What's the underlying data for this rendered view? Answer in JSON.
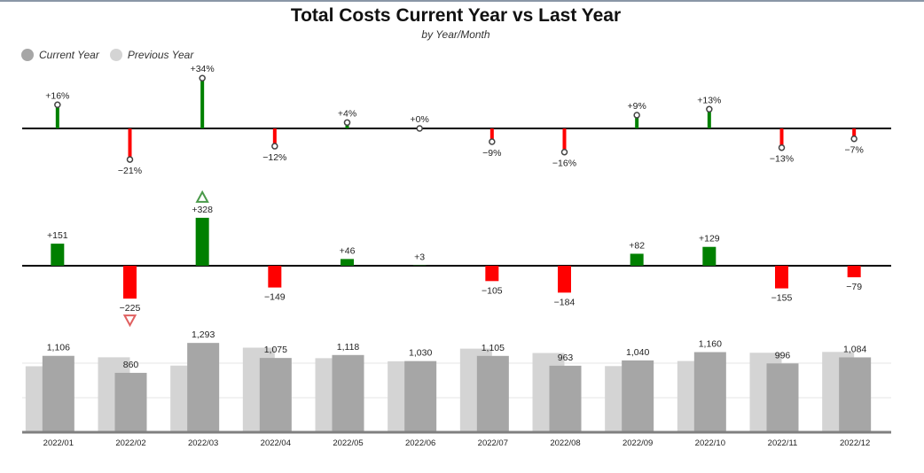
{
  "chart_data": {
    "type": "bar",
    "title": "Total Costs Current Year vs Last Year",
    "subtitle": "by Year/Month",
    "categories": [
      "2022/01",
      "2022/02",
      "2022/03",
      "2022/04",
      "2022/05",
      "2022/06",
      "2022/07",
      "2022/08",
      "2022/09",
      "2022/10",
      "2022/11",
      "2022/12"
    ],
    "legend": {
      "placement": "top-left"
    },
    "series": [
      {
        "name": "Current Year",
        "values": [
          1106,
          860,
          1293,
          1075,
          1118,
          1030,
          1105,
          963,
          1040,
          1160,
          996,
          1084
        ]
      },
      {
        "name": "Previous Year",
        "values": [
          955,
          1085,
          965,
          1224,
          1072,
          1027,
          1210,
          1147,
          958,
          1031,
          1151,
          1163
        ]
      }
    ],
    "variance_abs": [
      151,
      -225,
      328,
      -149,
      46,
      3,
      -105,
      -184,
      82,
      129,
      -155,
      -79
    ],
    "variance_abs_labels": [
      "+151",
      "−225",
      "+328",
      "−149",
      "+46",
      "+3",
      "−105",
      "−184",
      "+82",
      "+129",
      "−155",
      "−79"
    ],
    "variance_pct": [
      16,
      -21,
      34,
      -12,
      4,
      0,
      -9,
      -16,
      9,
      13,
      -13,
      -7
    ],
    "variance_pct_labels": [
      "+16%",
      "−21%",
      "+34%",
      "−12%",
      "+4%",
      "+0%",
      "−9%",
      "−16%",
      "+9%",
      "+13%",
      "−13%",
      "−7%"
    ],
    "highlights": {
      "max_variance_index": 2,
      "min_variance_index": 1
    },
    "colors": {
      "current": "#a6a6a6",
      "previous": "#d4d4d4",
      "positive": "#008000",
      "negative": "#ff0000",
      "max_marker": "#4a9a4a",
      "min_marker": "#e06060",
      "axis": "#000000",
      "grid": "#e6e6e6"
    }
  }
}
